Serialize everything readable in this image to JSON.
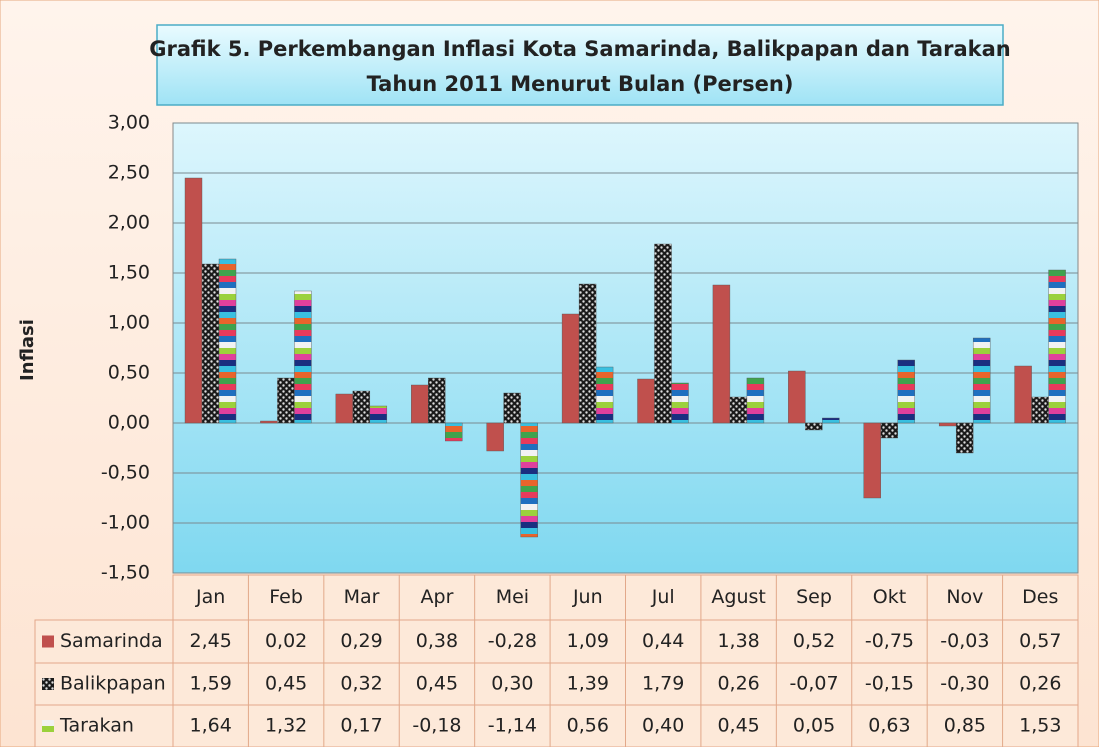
{
  "chart_data": {
    "type": "bar",
    "title": "Grafik 5. Perkembangan Inflasi Kota Samarinda, Balikpapan dan Tarakan",
    "subtitle": "Tahun 2011 Menurut Bulan (Persen)",
    "y_label": "Inflasi",
    "categories": [
      "Jan",
      "Feb",
      "Mar",
      "Apr",
      "Mei",
      "Jun",
      "Jul",
      "Agust",
      "Sep",
      "Okt",
      "Nov",
      "Des"
    ],
    "series": [
      {
        "name": "Samarinda",
        "color": "#c0504d",
        "values": [
          2.45,
          0.02,
          0.29,
          0.38,
          -0.28,
          1.09,
          0.44,
          1.38,
          0.52,
          -0.75,
          -0.03,
          0.57
        ],
        "value_labels": [
          "2,45",
          "0,02",
          "0,29",
          "0,38",
          "-0,28",
          "1,09",
          "0,44",
          "1,38",
          "0,52",
          "-0,75",
          "-0,03",
          "0,57"
        ]
      },
      {
        "name": "Balikpapan",
        "color": "#1a1a1a",
        "values": [
          1.59,
          0.45,
          0.32,
          0.45,
          0.3,
          1.39,
          1.79,
          0.26,
          -0.07,
          -0.15,
          -0.3,
          0.26
        ],
        "value_labels": [
          "1,59",
          "0,45",
          "0,32",
          "0,45",
          "0,30",
          "1,39",
          "1,79",
          "0,26",
          "-0,07",
          "-0,15",
          "-0,30",
          "0,26"
        ]
      },
      {
        "name": "Tarakan",
        "color": "#3fa34d",
        "values": [
          1.64,
          1.32,
          0.17,
          -0.18,
          -1.14,
          0.56,
          0.4,
          0.45,
          0.05,
          0.63,
          0.85,
          1.53
        ],
        "value_labels": [
          "1,64",
          "1,32",
          "0,17",
          "-0,18",
          "-1,14",
          "0,56",
          "0,40",
          "0,45",
          "0,05",
          "0,63",
          "0,85",
          "1,53"
        ]
      }
    ],
    "ylim": [
      -1.5,
      3
    ],
    "yticks": [
      {
        "value": -1.5,
        "label": "-1,50"
      },
      {
        "value": -1,
        "label": "-1,00"
      },
      {
        "value": -0.5,
        "label": "-0,50"
      },
      {
        "value": 0,
        "label": "0,00"
      },
      {
        "value": 0.5,
        "label": "0,50"
      },
      {
        "value": 1,
        "label": "1,00"
      },
      {
        "value": 1.5,
        "label": "1,50"
      },
      {
        "value": 2,
        "label": "2,00"
      },
      {
        "value": 2.5,
        "label": "2,50"
      },
      {
        "value": 3,
        "label": "3,00"
      }
    ],
    "grid": true
  }
}
